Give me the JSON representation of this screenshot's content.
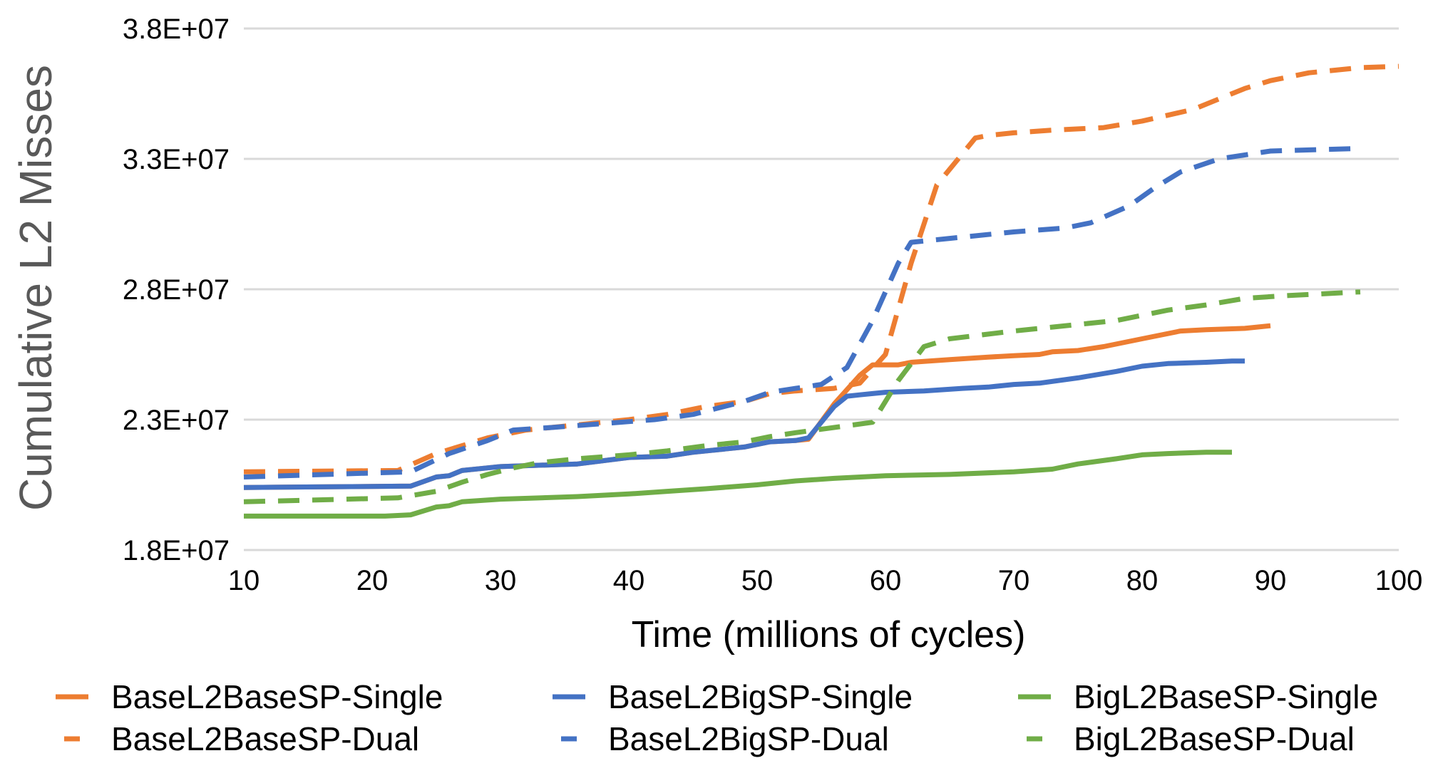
{
  "chart_data": {
    "type": "line",
    "title": "",
    "xlabel": "Time (millions of cycles)",
    "ylabel": "Cumulative L2 Misses",
    "xlim": [
      10,
      100
    ],
    "ylim": [
      18000000,
      38000000
    ],
    "x_ticks": [
      10,
      20,
      30,
      40,
      50,
      60,
      70,
      80,
      90,
      100
    ],
    "x_tick_labels": [
      "10",
      "20",
      "30",
      "40",
      "50",
      "60",
      "70",
      "80",
      "90",
      "100"
    ],
    "y_ticks": [
      18000000,
      23000000,
      28000000,
      33000000,
      38000000
    ],
    "y_tick_labels": [
      "1.8E+07",
      "2.3E+07",
      "2.8E+07",
      "3.3E+07",
      "3.8E+07"
    ],
    "grid": "horizontal",
    "legend_position": "bottom",
    "series": [
      {
        "name": "BaseL2BaseSP-Single",
        "color": "#ED7D31",
        "dash": "solid",
        "x": [
          10,
          23,
          25,
          26,
          27,
          29,
          30,
          36,
          40,
          43,
          45,
          47,
          49,
          51,
          53,
          54,
          56,
          58,
          59,
          61,
          62,
          65,
          68,
          70,
          72,
          73,
          75,
          77,
          80,
          83,
          85,
          88,
          90
        ],
        "y": [
          20400000,
          20450000,
          20800000,
          20850000,
          21050000,
          21150000,
          21200000,
          21300000,
          21550000,
          21600000,
          21750000,
          21850000,
          21950000,
          22150000,
          22200000,
          22250000,
          23600000,
          24700000,
          25100000,
          25100000,
          25200000,
          25300000,
          25400000,
          25450000,
          25500000,
          25600000,
          25650000,
          25800000,
          26100000,
          26400000,
          26450000,
          26500000,
          26600000
        ]
      },
      {
        "name": "BaseL2BaseSP-Dual",
        "color": "#ED7D31",
        "dash": "dashed",
        "x": [
          10,
          22,
          25,
          27,
          29,
          32,
          36,
          40,
          43,
          46,
          49,
          51,
          53,
          56,
          57,
          58,
          60,
          62,
          64,
          66,
          67,
          68,
          70,
          73,
          77,
          80,
          84,
          86,
          88,
          90,
          93,
          97,
          100
        ],
        "y": [
          21000000,
          21050000,
          21700000,
          22000000,
          22300000,
          22600000,
          22800000,
          23000000,
          23200000,
          23500000,
          23700000,
          24000000,
          24100000,
          24200000,
          24300000,
          24400000,
          25500000,
          29000000,
          32000000,
          33200000,
          33800000,
          33900000,
          34000000,
          34100000,
          34200000,
          34450000,
          34900000,
          35300000,
          35700000,
          36000000,
          36300000,
          36500000,
          36550000
        ]
      },
      {
        "name": "BaseL2BigSP-Single",
        "color": "#4472C4",
        "dash": "solid",
        "x": [
          10,
          23,
          25,
          26,
          27,
          29,
          30,
          36,
          40,
          43,
          45,
          47,
          49,
          51,
          53,
          54,
          56,
          57,
          58,
          59,
          60,
          63,
          66,
          68,
          70,
          72,
          75,
          78,
          80,
          82,
          85,
          87,
          88
        ],
        "y": [
          20400000,
          20450000,
          20800000,
          20850000,
          21050000,
          21150000,
          21200000,
          21300000,
          21550000,
          21600000,
          21750000,
          21850000,
          21950000,
          22150000,
          22200000,
          22300000,
          23500000,
          23900000,
          23950000,
          24000000,
          24050000,
          24100000,
          24200000,
          24250000,
          24350000,
          24400000,
          24600000,
          24850000,
          25050000,
          25150000,
          25200000,
          25250000,
          25250000
        ]
      },
      {
        "name": "BaseL2BigSP-Dual",
        "color": "#4472C4",
        "dash": "dashed",
        "x": [
          10,
          23,
          26,
          29,
          31,
          34,
          38,
          42,
          45,
          49,
          51,
          53,
          55,
          57,
          59,
          61,
          62,
          65,
          70,
          74,
          76,
          79,
          81,
          83,
          86,
          90,
          97
        ],
        "y": [
          20800000,
          21000000,
          21700000,
          22200000,
          22600000,
          22700000,
          22850000,
          23000000,
          23200000,
          23700000,
          24050000,
          24200000,
          24350000,
          25000000,
          26800000,
          29000000,
          29800000,
          29950000,
          30200000,
          30350000,
          30550000,
          31200000,
          31900000,
          32500000,
          33000000,
          33300000,
          33400000
        ]
      },
      {
        "name": "BigL2BaseSP-Single",
        "color": "#70AD47",
        "dash": "solid",
        "x": [
          10,
          21,
          23,
          25,
          26,
          27,
          30,
          36,
          40,
          43,
          46,
          50,
          53,
          56,
          60,
          65,
          70,
          73,
          75,
          78,
          80,
          82,
          85,
          87
        ],
        "y": [
          19300000,
          19300000,
          19350000,
          19650000,
          19700000,
          19850000,
          19950000,
          20050000,
          20150000,
          20250000,
          20350000,
          20500000,
          20650000,
          20750000,
          20850000,
          20900000,
          21000000,
          21100000,
          21300000,
          21500000,
          21650000,
          21700000,
          21750000,
          21750000
        ]
      },
      {
        "name": "BigL2BaseSP-Dual",
        "color": "#70AD47",
        "dash": "dashed",
        "x": [
          10,
          22,
          25,
          27,
          29,
          31,
          33,
          36,
          40,
          43,
          46,
          49,
          51,
          53,
          56,
          59,
          61,
          63,
          65,
          70,
          73,
          78,
          80,
          82,
          85,
          88,
          91,
          95,
          97
        ],
        "y": [
          19850000,
          20000000,
          20250000,
          20600000,
          20900000,
          21150000,
          21350000,
          21500000,
          21650000,
          21800000,
          22000000,
          22150000,
          22350000,
          22500000,
          22700000,
          22900000,
          24500000,
          25800000,
          26100000,
          26400000,
          26550000,
          26800000,
          27000000,
          27200000,
          27400000,
          27650000,
          27750000,
          27850000,
          27900000
        ]
      }
    ]
  }
}
